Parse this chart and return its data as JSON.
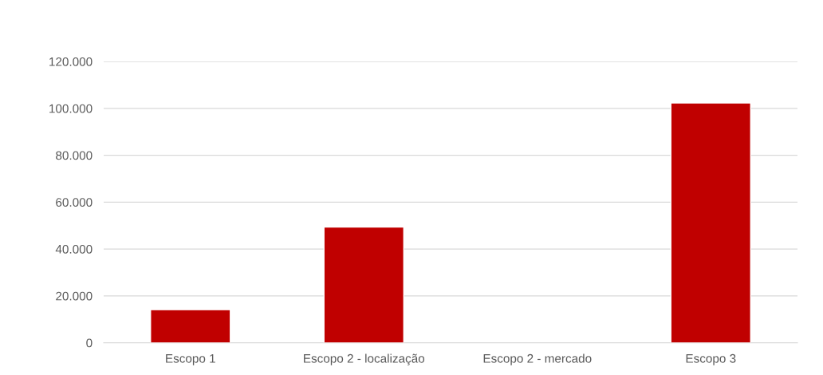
{
  "chart_data": {
    "type": "bar",
    "categories": [
      "Escopo 1",
      "Escopo 2 - localização",
      "Escopo 2 - mercado",
      "Escopo 3"
    ],
    "values": [
      14100,
      49400,
      null,
      102300
    ],
    "color": "#c00000",
    "ylim": [
      0,
      120000
    ],
    "yticks": [
      {
        "value": 0,
        "label": "0"
      },
      {
        "value": 20000,
        "label": "20.000"
      },
      {
        "value": 40000,
        "label": "40.000"
      },
      {
        "value": 60000,
        "label": "60.000"
      },
      {
        "value": 80000,
        "label": "80.000"
      },
      {
        "value": 100000,
        "label": "100.000"
      },
      {
        "value": 120000,
        "label": "120.000"
      }
    ],
    "grid": "y"
  }
}
